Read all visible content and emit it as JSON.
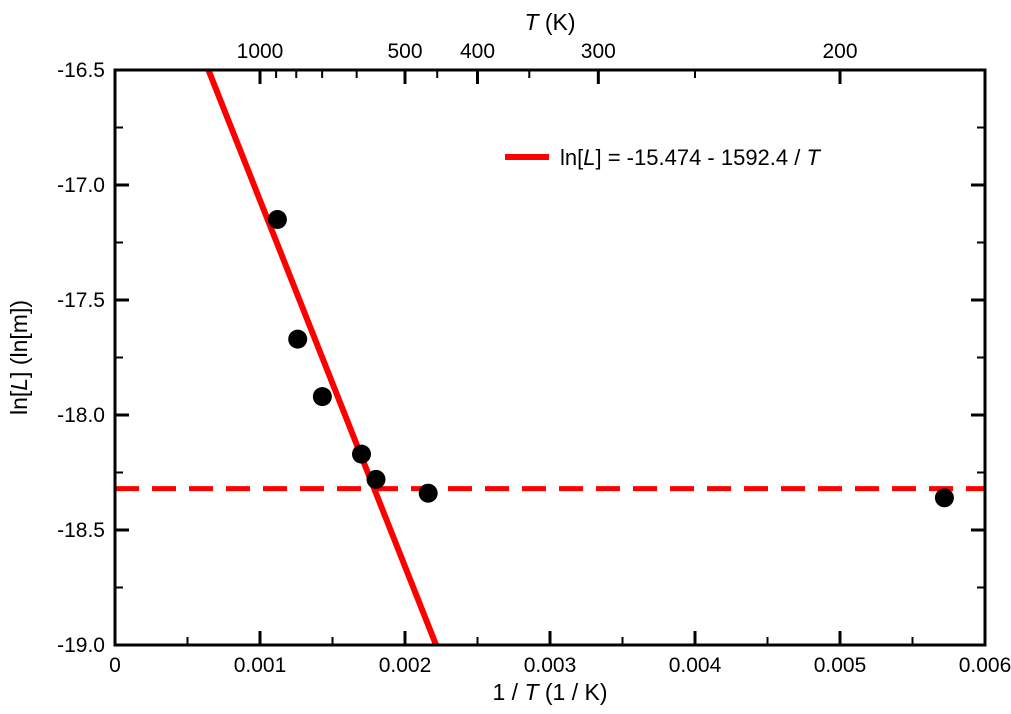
{
  "figure": {
    "background": "#ffffff"
  },
  "chart_data": {
    "type": "scatter",
    "title": "",
    "grid": false,
    "legend_position": "inside-top-center",
    "top_axis": {
      "label_plain": "T (K)",
      "label_parts": [
        {
          "t": "T",
          "i": true
        },
        {
          "t": " (K)"
        }
      ],
      "tick_values_T": [
        1000,
        500,
        400,
        300,
        200
      ],
      "tick_labels": [
        "1000",
        "500",
        "400",
        "300",
        "200"
      ],
      "minor_tick_values_T": [
        900,
        800,
        700,
        600,
        450,
        350,
        250
      ]
    },
    "x_axis": {
      "label_plain": "1 / T (1 / K)",
      "label_parts": [
        {
          "t": "1 / "
        },
        {
          "t": "T",
          "i": true
        },
        {
          "t": " (1 / K)"
        }
      ],
      "range": [
        0,
        0.006
      ],
      "major_ticks": [
        0,
        0.001,
        0.002,
        0.003,
        0.004,
        0.005,
        0.006
      ],
      "tick_labels": [
        "0",
        "0.001",
        "0.002",
        "0.003",
        "0.004",
        "0.005",
        "0.006"
      ],
      "minor_ticks": [
        0.0005,
        0.0015,
        0.0025,
        0.0035,
        0.0045,
        0.0055
      ]
    },
    "y_axis": {
      "label_plain": "ln[L] (ln[m])",
      "label_parts": [
        {
          "t": "ln["
        },
        {
          "t": "L",
          "i": true
        },
        {
          "t": "] (ln[m])"
        }
      ],
      "range": [
        -19.0,
        -16.5
      ],
      "major_ticks": [
        -16.5,
        -17.0,
        -17.5,
        -18.0,
        -18.5,
        -19.0
      ],
      "tick_labels": [
        "-16.5",
        "-17.0",
        "-17.5",
        "-18.0",
        "-18.5",
        "-19.0"
      ],
      "minor_ticks": [
        -16.75,
        -17.25,
        -17.75,
        -18.25,
        -18.75
      ]
    },
    "series": [
      {
        "name": "measured-points",
        "type": "scatter",
        "marker": "circle",
        "color": "#000000",
        "points": [
          {
            "x": 0.00112,
            "y": -17.15
          },
          {
            "x": 0.00126,
            "y": -17.67
          },
          {
            "x": 0.00143,
            "y": -17.92
          },
          {
            "x": 0.0017,
            "y": -18.17
          },
          {
            "x": 0.0018,
            "y": -18.28
          },
          {
            "x": 0.00216,
            "y": -18.34
          },
          {
            "x": 0.00572,
            "y": -18.36
          }
        ]
      }
    ],
    "fit_line": {
      "equation_plain": "ln[L] = -15.474 - 1592.4 / T",
      "equation_parts": [
        {
          "t": "ln["
        },
        {
          "t": "L",
          "i": true
        },
        {
          "t": "] = -15.474 - 1592.4 / "
        },
        {
          "t": "T",
          "i": true
        }
      ],
      "intercept": -15.474,
      "slope_vs_inverse_T": -1592.4,
      "color": "#ff0000",
      "style": "solid"
    },
    "baseline": {
      "y": -18.32,
      "style": "dashed",
      "color": "#ff0000"
    }
  }
}
